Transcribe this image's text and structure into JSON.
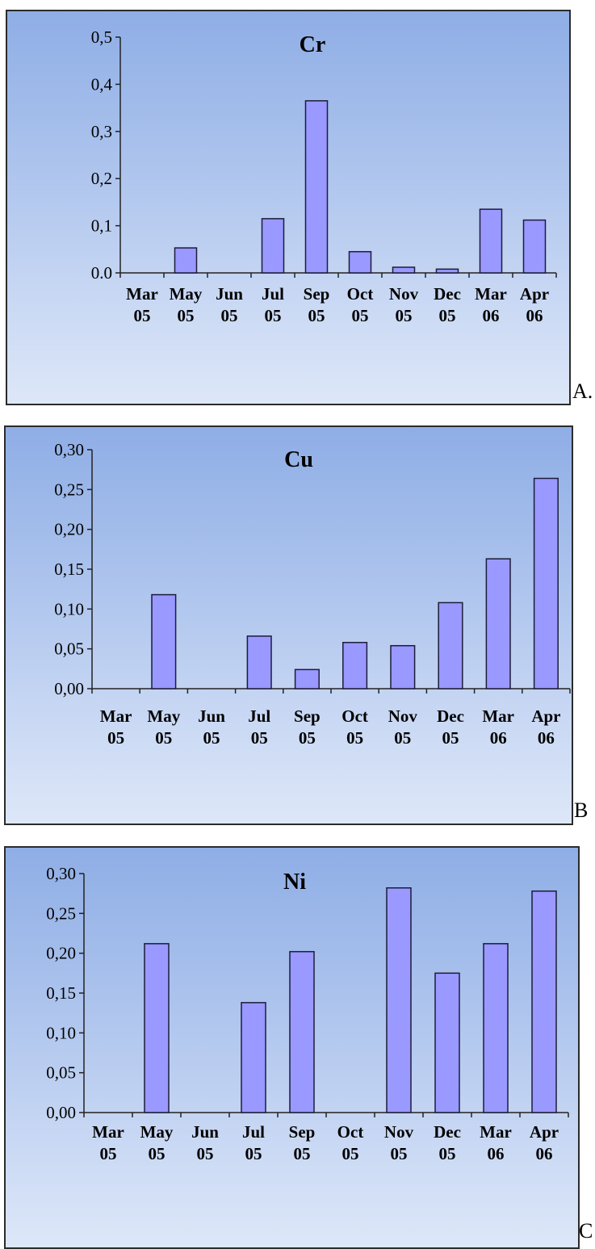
{
  "chart_data": [
    {
      "type": "bar",
      "panel_label": "A.",
      "title": "Cr",
      "categories": [
        [
          "Mar",
          "05"
        ],
        [
          "May",
          "05"
        ],
        [
          "Jun",
          "05"
        ],
        [
          "Jul",
          "05"
        ],
        [
          "Sep",
          "05"
        ],
        [
          "Oct",
          "05"
        ],
        [
          "Nov",
          "05"
        ],
        [
          "Dec",
          "05"
        ],
        [
          "Mar",
          "06"
        ],
        [
          "Apr",
          "06"
        ]
      ],
      "values": [
        0,
        0.053,
        0,
        0.115,
        0.365,
        0.045,
        0.012,
        0.008,
        0.135,
        0.112
      ],
      "ylim": [
        0,
        0.5
      ],
      "yticks": [
        "0.0",
        "0,1",
        "0,2",
        "0,3",
        "0,4",
        "0,5"
      ],
      "bar_color": "#9999ff",
      "grid": false
    },
    {
      "type": "bar",
      "panel_label": "B",
      "title": "Cu",
      "categories": [
        [
          "Mar",
          "05"
        ],
        [
          "May",
          "05"
        ],
        [
          "Jun",
          "05"
        ],
        [
          "Jul",
          "05"
        ],
        [
          "Sep",
          "05"
        ],
        [
          "Oct",
          "05"
        ],
        [
          "Nov",
          "05"
        ],
        [
          "Dec",
          "05"
        ],
        [
          "Mar",
          "06"
        ],
        [
          "Apr",
          "06"
        ]
      ],
      "values": [
        0,
        0.118,
        0,
        0.066,
        0.024,
        0.058,
        0.054,
        0.108,
        0.163,
        0.264
      ],
      "ylim": [
        0,
        0.3
      ],
      "yticks": [
        "0,00",
        "0,05",
        "0,10",
        "0,15",
        "0,20",
        "0,25",
        "0,30"
      ],
      "bar_color": "#9999ff",
      "grid": false
    },
    {
      "type": "bar",
      "panel_label": "C",
      "title": "Ni",
      "categories": [
        [
          "Mar",
          "05"
        ],
        [
          "May",
          "05"
        ],
        [
          "Jun",
          "05"
        ],
        [
          "Jul",
          "05"
        ],
        [
          "Sep",
          "05"
        ],
        [
          "Oct",
          "05"
        ],
        [
          "Nov",
          "05"
        ],
        [
          "Dec",
          "05"
        ],
        [
          "Mar",
          "06"
        ],
        [
          "Apr",
          "06"
        ]
      ],
      "values": [
        0,
        0.212,
        0,
        0.138,
        0.202,
        0,
        0.282,
        0.175,
        0.212,
        0.278
      ],
      "ylim": [
        0,
        0.3
      ],
      "yticks": [
        "0,00",
        "0,05",
        "0,10",
        "0,15",
        "0,20",
        "0,25",
        "0,30"
      ],
      "bar_color": "#9999ff",
      "grid": false
    }
  ]
}
